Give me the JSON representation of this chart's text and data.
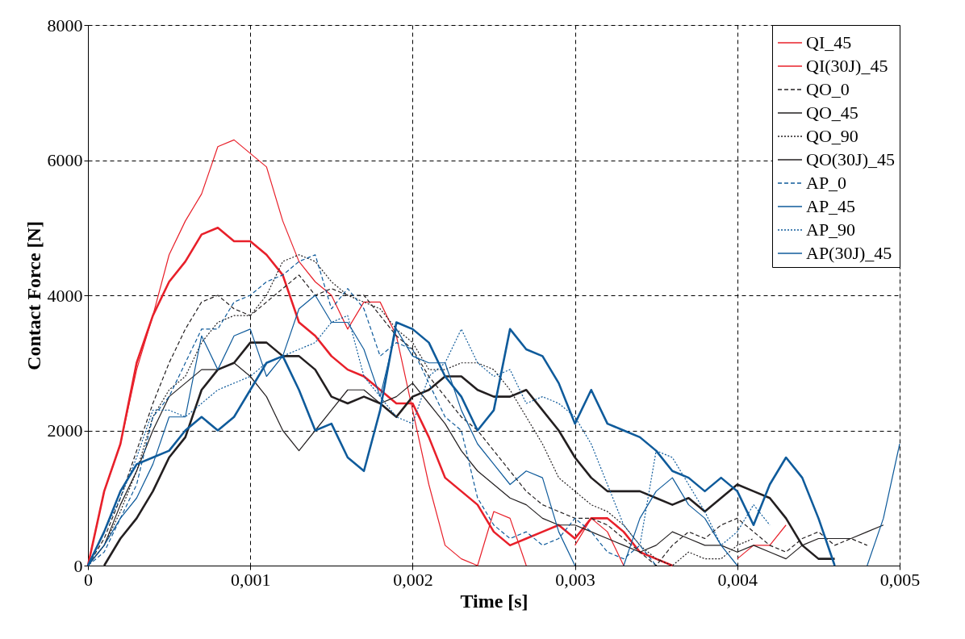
{
  "chart_data": {
    "type": "line",
    "xlabel": "Time [s]",
    "ylabel": "Contact Force [N]",
    "x": [
      0,
      0.0001,
      0.0002,
      0.0003,
      0.0004,
      0.0005,
      0.0006,
      0.0007,
      0.0008,
      0.0009,
      0.001,
      0.0011,
      0.0012,
      0.0013,
      0.0014,
      0.0015,
      0.0016,
      0.0017,
      0.0018,
      0.0019,
      0.002,
      0.0021,
      0.0022,
      0.0023,
      0.0024,
      0.0025,
      0.0026,
      0.0027,
      0.0028,
      0.0029,
      0.003,
      0.0031,
      0.0032,
      0.0033,
      0.0034,
      0.0035,
      0.0036,
      0.0037,
      0.0038,
      0.0039,
      0.004,
      0.0041,
      0.0042,
      0.0043,
      0.0044,
      0.0045,
      0.0046,
      0.0047,
      0.0048,
      0.0049,
      0.005
    ],
    "xlim": [
      0,
      0.005
    ],
    "ylim": [
      0,
      8000
    ],
    "xticks": [
      0,
      {
        "value": 0.001,
        "label": "0,001"
      },
      {
        "value": 0.002,
        "label": "0,002"
      },
      {
        "value": 0.003,
        "label": "0,003"
      },
      {
        "value": 0.004,
        "label": "0,004"
      },
      {
        "value": 0.005,
        "label": "0,005"
      }
    ],
    "yticks": [
      0,
      2000,
      4000,
      6000,
      8000
    ],
    "grid": true,
    "legend": "top right",
    "marker": "none",
    "series": [
      {
        "name": "QI_45",
        "color": "#e8202a",
        "line_style": "solid",
        "values": [
          0,
          1100,
          1800,
          2900,
          3700,
          4600,
          5100,
          5500,
          6200,
          6300,
          6100,
          5900,
          5100,
          4500,
          4200,
          4000,
          3500,
          3900,
          3900,
          3400,
          2300,
          1200,
          300,
          100,
          0,
          800,
          700,
          0,
          null,
          null,
          300,
          700,
          500,
          0,
          null,
          null,
          null,
          null,
          null,
          null,
          100,
          300,
          300,
          600,
          null,
          null,
          null,
          null,
          null,
          null,
          null
        ]
      },
      {
        "name": "QI(30J)_45",
        "color": "#e8202a",
        "line_style": "solid",
        "values": [
          0,
          1100,
          1800,
          3000,
          3700,
          4200,
          4500,
          4900,
          5000,
          4800,
          4800,
          4600,
          4300,
          3600,
          3400,
          3100,
          2900,
          2800,
          2600,
          2400,
          2400,
          1900,
          1300,
          1100,
          900,
          500,
          300,
          400,
          500,
          600,
          400,
          700,
          700,
          500,
          200,
          100,
          0,
          null,
          null,
          null,
          null,
          null,
          null,
          null,
          null,
          null,
          null,
          null,
          null,
          null,
          null
        ]
      },
      {
        "name": "QO_0",
        "color": "#231f20",
        "line_style": "dashed",
        "values": [
          0,
          400,
          1000,
          1700,
          2400,
          3000,
          3500,
          3900,
          4000,
          3800,
          3700,
          3900,
          4100,
          4300,
          4000,
          4100,
          4000,
          4000,
          3700,
          3400,
          3200,
          2800,
          2500,
          2200,
          2000,
          1700,
          1400,
          1100,
          900,
          800,
          700,
          700,
          600,
          400,
          200,
          0,
          300,
          500,
          400,
          600,
          700,
          500,
          300,
          200,
          400,
          500,
          300,
          400,
          300,
          null,
          null
        ]
      },
      {
        "name": "QO_45",
        "color": "#231f20",
        "line_style": "solid",
        "values": [
          0,
          300,
          900,
          1400,
          2000,
          2500,
          2700,
          2900,
          2900,
          3000,
          2800,
          2500,
          2000,
          1700,
          2000,
          2300,
          2600,
          2600,
          2400,
          2500,
          2700,
          2400,
          2100,
          1700,
          1400,
          1200,
          1000,
          900,
          700,
          600,
          600,
          500,
          400,
          300,
          200,
          300,
          500,
          400,
          300,
          300,
          200,
          300,
          200,
          100,
          300,
          400,
          400,
          400,
          500,
          600,
          null
        ]
      },
      {
        "name": "QO_90",
        "color": "#231f20",
        "line_style": "dotted",
        "values": [
          0,
          300,
          800,
          1400,
          2200,
          2600,
          2800,
          3300,
          3600,
          3700,
          3700,
          4000,
          4500,
          4600,
          4500,
          4200,
          4000,
          3900,
          3800,
          3500,
          3300,
          2900,
          2900,
          3000,
          3000,
          2900,
          2600,
          2200,
          1800,
          1300,
          1100,
          900,
          800,
          600,
          300,
          100,
          0,
          200,
          100,
          100,
          300,
          400,
          null,
          null,
          null,
          null,
          null,
          null,
          null,
          null,
          null
        ]
      },
      {
        "name": "QO(30J)_45",
        "color": "#231f20",
        "line_style": "solid",
        "values": [
          null,
          0,
          400,
          700,
          1100,
          1600,
          1900,
          2600,
          2900,
          3000,
          3300,
          3300,
          3100,
          3100,
          2900,
          2500,
          2400,
          2500,
          2400,
          2200,
          2500,
          2600,
          2800,
          2800,
          2600,
          2500,
          2500,
          2600,
          2300,
          2000,
          1600,
          1300,
          1100,
          1100,
          1100,
          1000,
          900,
          1000,
          800,
          1000,
          1200,
          1100,
          1000,
          700,
          300,
          100,
          100,
          null,
          null,
          null,
          null
        ]
      },
      {
        "name": "AP_0",
        "color": "#0f5b9b",
        "line_style": "dashed",
        "values": [
          0,
          200,
          700,
          1200,
          2200,
          2500,
          3000,
          3500,
          3500,
          3900,
          4000,
          4200,
          4300,
          4500,
          4600,
          3800,
          4100,
          3800,
          3100,
          3300,
          3200,
          2700,
          2200,
          2000,
          1000,
          600,
          400,
          500,
          300,
          400,
          700,
          500,
          200,
          100,
          300,
          0,
          null,
          null,
          null,
          null,
          null,
          null,
          null,
          null,
          null,
          null,
          null,
          null,
          null,
          null,
          null
        ]
      },
      {
        "name": "AP_45",
        "color": "#0f5b9b",
        "line_style": "solid",
        "values": [
          0,
          300,
          700,
          1000,
          1500,
          2200,
          2200,
          3400,
          2900,
          3400,
          3500,
          2800,
          3100,
          3800,
          4000,
          3600,
          3600,
          3200,
          2500,
          3500,
          3100,
          3000,
          3000,
          2300,
          1800,
          1500,
          1200,
          1400,
          1300,
          500,
          0,
          null,
          null,
          0,
          700,
          1100,
          1300,
          900,
          700,
          300,
          0,
          null,
          null,
          null,
          null,
          null,
          null,
          null,
          0,
          700,
          1800
        ]
      },
      {
        "name": "AP_90",
        "color": "#0f5b9b",
        "line_style": "dotted",
        "values": [
          0,
          500,
          1000,
          1600,
          2300,
          2300,
          2200,
          2400,
          2600,
          2700,
          2800,
          3000,
          3100,
          3200,
          3300,
          3600,
          3700,
          2800,
          2500,
          2200,
          2100,
          2800,
          3000,
          3500,
          3000,
          2800,
          2900,
          2400,
          2500,
          2400,
          2200,
          1800,
          1200,
          600,
          300,
          1700,
          1600,
          1200,
          800,
          300,
          500,
          900,
          600,
          null,
          null,
          null,
          null,
          null,
          null,
          null,
          null
        ]
      },
      {
        "name": "AP(30J)_45",
        "color": "#0f5b9b",
        "line_style": "solid",
        "values": [
          0,
          500,
          1100,
          1500,
          1600,
          1700,
          2000,
          2200,
          2000,
          2200,
          2600,
          3000,
          3100,
          2600,
          2000,
          2100,
          1600,
          1400,
          2300,
          3600,
          3500,
          3300,
          2800,
          2500,
          2000,
          2300,
          3500,
          3200,
          3100,
          2700,
          2100,
          2600,
          2100,
          2000,
          1900,
          1700,
          1400,
          1300,
          1100,
          1300,
          1100,
          600,
          1200,
          1600,
          1300,
          700,
          0,
          null,
          null,
          null,
          null
        ]
      }
    ]
  }
}
